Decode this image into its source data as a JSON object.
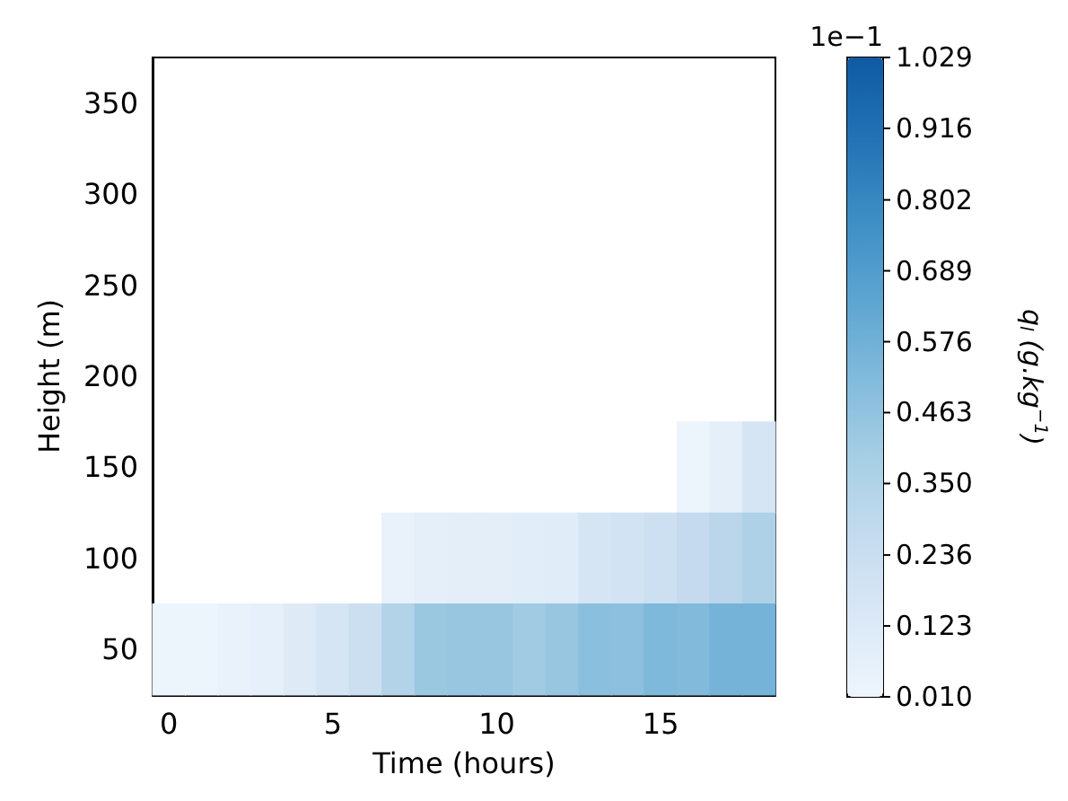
{
  "chart_data": {
    "type": "heatmap",
    "xlabel": "Time (hours)",
    "ylabel": "Height (m)",
    "clabel": "q$_{l}$ (g.kg$^{−1}$)",
    "annotations": [
      "1e−1"
    ],
    "categories": [
      "0",
      null,
      null,
      null,
      null,
      "5",
      null,
      null,
      null,
      null,
      "10",
      null,
      null,
      null,
      null,
      "15",
      null,
      null,
      null
    ],
    "y_categories": [
      "350",
      "300",
      "250",
      "200",
      "150",
      "100",
      "50"
    ],
    "cells": [
      [
        null,
        null,
        null,
        null,
        null,
        null,
        null,
        null,
        null,
        null,
        null,
        null,
        null,
        null,
        null,
        null,
        null,
        null,
        null
      ],
      [
        null,
        null,
        null,
        null,
        null,
        null,
        null,
        null,
        null,
        null,
        null,
        null,
        null,
        null,
        null,
        null,
        null,
        null,
        null
      ],
      [
        null,
        null,
        null,
        null,
        null,
        null,
        null,
        null,
        null,
        null,
        null,
        null,
        null,
        null,
        null,
        null,
        null,
        null,
        null
      ],
      [
        null,
        null,
        null,
        null,
        null,
        null,
        null,
        null,
        null,
        null,
        null,
        null,
        null,
        null,
        null,
        null,
        null,
        null,
        null
      ],
      [
        null,
        null,
        null,
        null,
        null,
        null,
        null,
        null,
        null,
        null,
        null,
        null,
        null,
        null,
        null,
        null,
        0.02,
        0.07,
        0.17
      ],
      [
        null,
        null,
        null,
        null,
        null,
        null,
        null,
        0.04,
        0.07,
        0.08,
        0.08,
        0.09,
        0.1,
        0.17,
        0.19,
        0.22,
        0.27,
        0.31,
        0.36
      ],
      [
        0.02,
        0.02,
        0.04,
        0.06,
        0.11,
        0.17,
        0.23,
        0.34,
        0.43,
        0.44,
        0.44,
        0.41,
        0.44,
        0.49,
        0.48,
        0.53,
        0.52,
        0.56,
        0.56
      ]
    ],
    "clim": [
      0.01,
      1.029
    ],
    "cticks": [
      {
        "value": 0.01,
        "label": "0.010"
      },
      0.123,
      0.236,
      {
        "value": 0.35,
        "label": "0.350"
      },
      0.463,
      0.576,
      0.689,
      0.802,
      0.916,
      1.029
    ]
  }
}
